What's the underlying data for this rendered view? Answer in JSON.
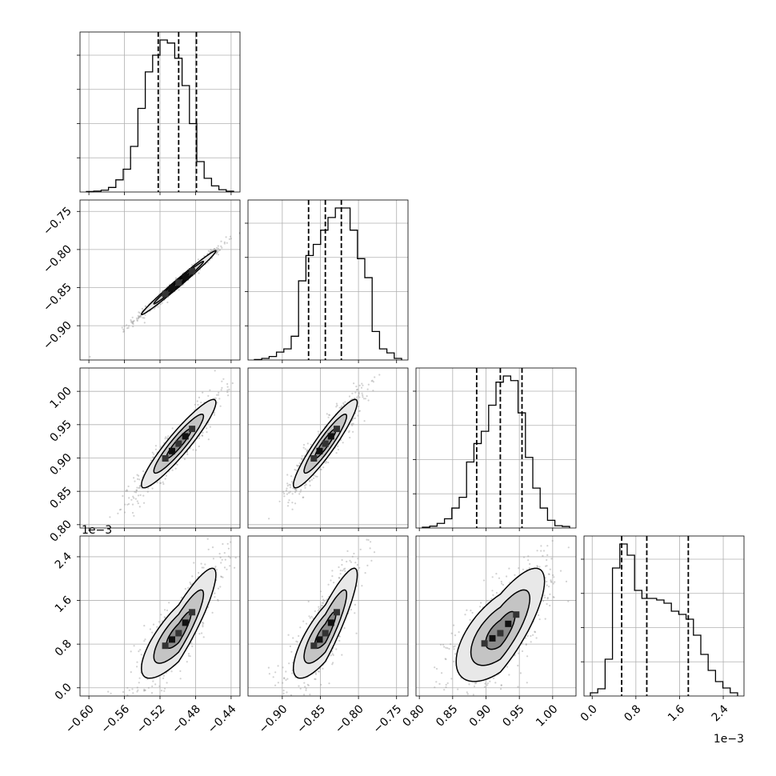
{
  "chart_data": {
    "type": "corner",
    "grid": true,
    "params": [
      {
        "ticks": [
          "−0.60",
          "−0.56",
          "−0.52",
          "−0.48",
          "−0.44"
        ],
        "tick_values": [
          -0.6,
          -0.56,
          -0.52,
          -0.48,
          -0.44
        ],
        "range": [
          -0.61,
          -0.43
        ],
        "quantiles": [
          -0.522,
          -0.499,
          -0.479
        ],
        "offset_label": "",
        "hist": [
          0.003,
          0.006,
          0.012,
          0.03,
          0.08,
          0.15,
          0.3,
          0.55,
          0.79,
          0.9,
          1.0,
          0.98,
          0.88,
          0.7,
          0.45,
          0.2,
          0.09,
          0.04,
          0.015,
          0.005
        ]
      },
      {
        "ticks": [
          "−0.90",
          "−0.85",
          "−0.80",
          "−0.75"
        ],
        "tick_values": [
          -0.9,
          -0.85,
          -0.8,
          -0.75
        ],
        "range": [
          -0.945,
          -0.735
        ],
        "quantiles": [
          -0.8655,
          -0.8435,
          -0.8225
        ],
        "offset_label": "",
        "hist": [
          0.003,
          0.01,
          0.022,
          0.05,
          0.07,
          0.15,
          0.5,
          0.66,
          0.73,
          0.82,
          0.9,
          0.96,
          0.96,
          0.82,
          0.64,
          0.52,
          0.18,
          0.07,
          0.045,
          0.01
        ]
      },
      {
        "ticks": [
          "0.80",
          "0.85",
          "0.90",
          "0.95",
          "1.00"
        ],
        "tick_values": [
          0.8,
          0.85,
          0.9,
          0.95,
          1.0
        ],
        "range": [
          0.795,
          1.035
        ],
        "quantiles": [
          0.886,
          0.9215,
          0.954
        ],
        "offset_label": "",
        "hist": [
          0.005,
          0.012,
          0.03,
          0.06,
          0.13,
          0.2,
          0.43,
          0.55,
          0.63,
          0.8,
          0.95,
          0.99,
          0.96,
          0.75,
          0.46,
          0.26,
          0.13,
          0.05,
          0.015,
          0.01
        ]
      },
      {
        "ticks": [
          "0.0",
          "0.8",
          "1.6",
          "2.4"
        ],
        "tick_values": [
          0.0,
          0.8,
          1.6,
          2.4
        ],
        "range": [
          -0.15,
          2.78
        ],
        "quantiles": [
          0.54,
          1.0,
          1.76
        ],
        "offset_label": "1e−3",
        "hist": [
          0.02,
          0.045,
          0.23,
          0.8,
          0.95,
          0.88,
          0.66,
          0.61,
          0.61,
          0.6,
          0.58,
          0.53,
          0.51,
          0.48,
          0.38,
          0.26,
          0.16,
          0.09,
          0.05,
          0.02
        ]
      }
    ],
    "pairs": [
      {
        "row": 1,
        "col": 0,
        "rho": 0.99
      },
      {
        "row": 2,
        "col": 0,
        "rho": 0.93
      },
      {
        "row": 2,
        "col": 1,
        "rho": 0.93
      },
      {
        "row": 3,
        "col": 0,
        "rho": 0.9,
        "curve": 0.6
      },
      {
        "row": 3,
        "col": 1,
        "rho": 0.9,
        "curve": 0.6
      },
      {
        "row": 3,
        "col": 2,
        "rho": 0.8,
        "curve": 0.6
      }
    ],
    "contour_levels_sigma": [
      0.5,
      1.0,
      1.5
    ]
  }
}
